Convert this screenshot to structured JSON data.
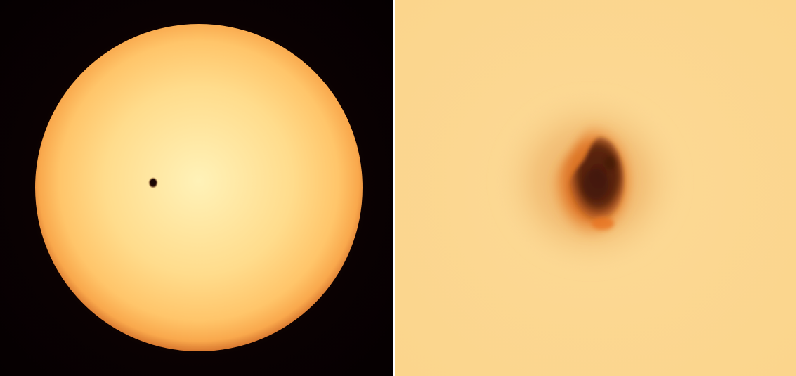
{
  "panels": [
    {
      "name": "full-disk-view",
      "subject": "sun",
      "colors": {
        "background": "#070102",
        "disk_center": "#fff0b2",
        "disk_mid": "#ffd27d",
        "disk_limb": "#f7a34a",
        "limb_edge": "#c86a2a",
        "sunspot": "#2a0d06"
      }
    },
    {
      "name": "sunspot-closeup",
      "subject": "sunspot",
      "colors": {
        "photosphere": "#fbd893",
        "penumbra_outer": "#f3b766",
        "penumbra_inner": "#e07a2a",
        "umbra": "#5a2410"
      }
    }
  ]
}
